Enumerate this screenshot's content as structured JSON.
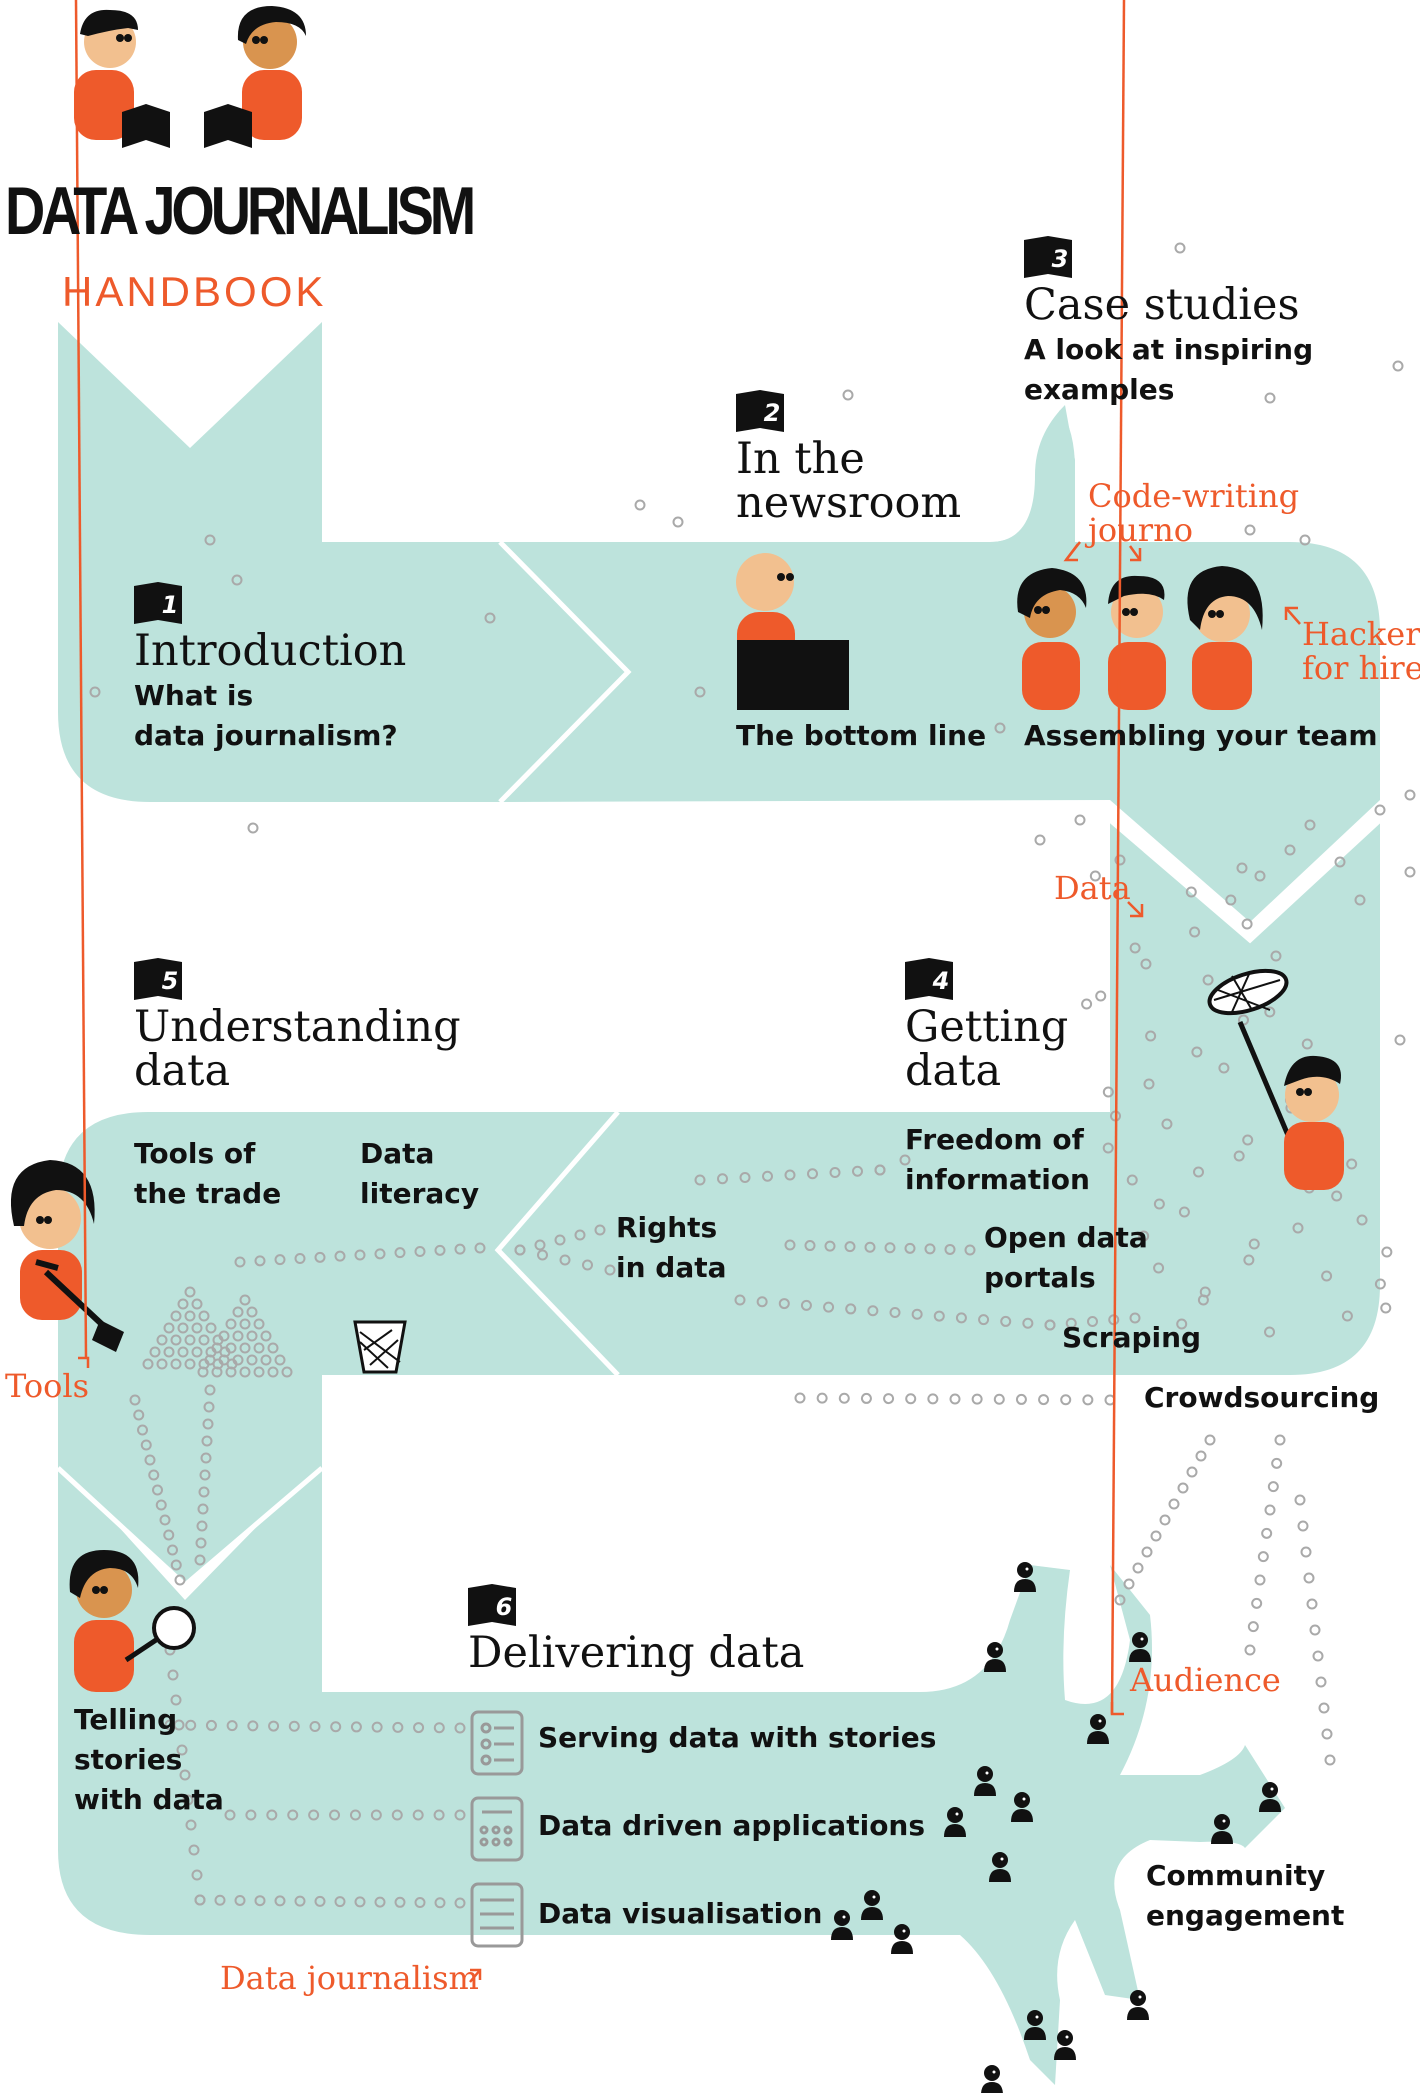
{
  "header": {
    "title_line1": "DATA JOURNALISM",
    "title_line2": "HANDBOOK"
  },
  "colors": {
    "path": "#bde3dc",
    "accent": "#ee5a2b",
    "skin": "#f2c08f",
    "skin_dark": "#d9944f",
    "ink": "#111111",
    "dots": "#a9a9a9"
  },
  "chapters": [
    {
      "number": "1",
      "title": "Introduction",
      "subtitle_lines": [
        "What is",
        "data journalism?"
      ]
    },
    {
      "number": "2",
      "title_lines": [
        "In the",
        "newsroom"
      ],
      "sections": [
        "The bottom line",
        "Assembling your team"
      ]
    },
    {
      "number": "3",
      "title": "Case studies",
      "subtitle_lines": [
        "A look at inspiring",
        "examples"
      ]
    },
    {
      "number": "4",
      "title_lines": [
        "Getting",
        "data"
      ],
      "sections": [
        {
          "lines": [
            "Freedom of",
            "information"
          ]
        },
        {
          "lines": [
            "Open data",
            "portals"
          ]
        },
        {
          "lines": [
            "Scraping"
          ]
        },
        {
          "lines": [
            "Crowdsourcing"
          ]
        },
        {
          "lines": [
            "Rights",
            "in data"
          ]
        }
      ]
    },
    {
      "number": "5",
      "title_lines": [
        "Understanding",
        "data"
      ],
      "sections": [
        {
          "lines": [
            "Tools of",
            "the trade"
          ]
        },
        {
          "lines": [
            "Data",
            "literacy"
          ]
        }
      ]
    },
    {
      "number": "6",
      "title": "Delivering data",
      "sections": [
        {
          "lines": [
            "Telling",
            "stories",
            "with data"
          ]
        },
        {
          "lines": [
            "Serving data with stories"
          ]
        },
        {
          "lines": [
            "Data driven applications"
          ]
        },
        {
          "lines": [
            "Data visualisation"
          ]
        },
        {
          "lines": [
            "Community",
            "engagement"
          ]
        }
      ]
    }
  ],
  "annotations": {
    "code_writing": [
      "Code-writing",
      "journo"
    ],
    "hacker": [
      "Hacker",
      "for hire"
    ],
    "data": "Data",
    "tools": "Tools",
    "audience": "Audience",
    "data_journalism": "Data journalism"
  }
}
